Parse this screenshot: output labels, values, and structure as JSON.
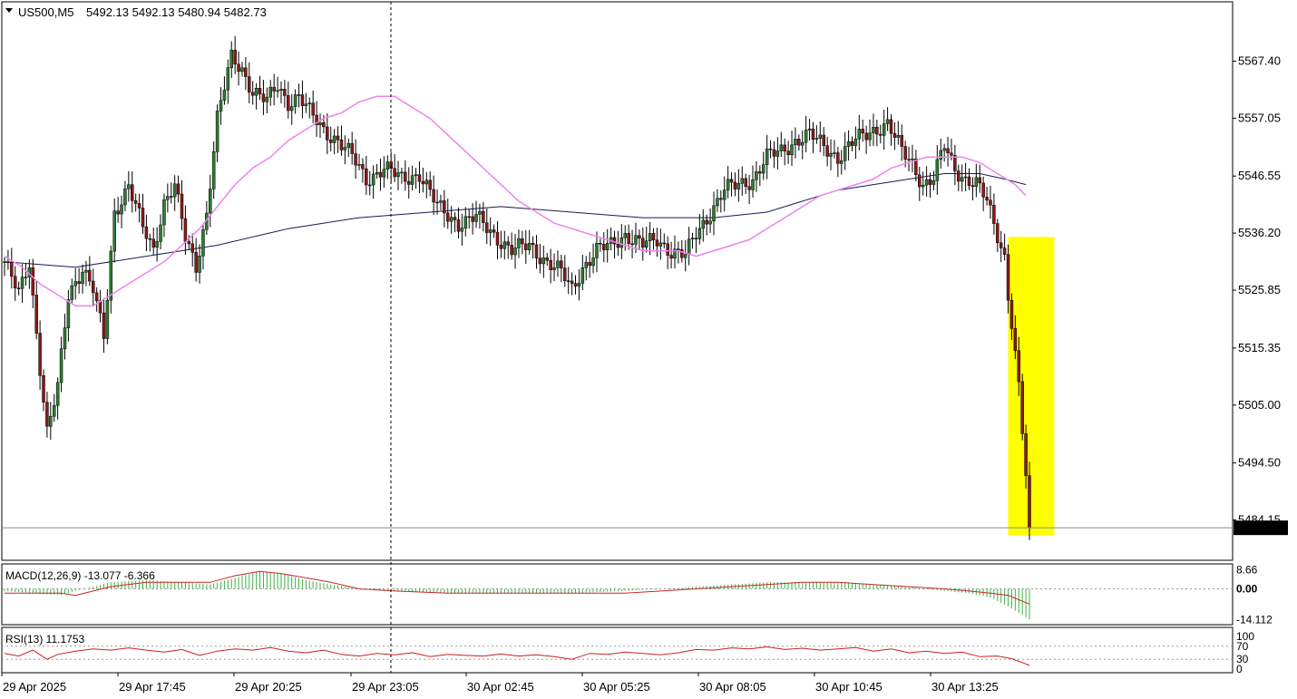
{
  "header": {
    "symbol": "US500,M5",
    "ohlc": "5492.13 5492.13 5480.94 5482.73"
  },
  "colors": {
    "bull": "#2e7d32",
    "bear": "#8b1a1a",
    "ma_fast": "#ee82ee",
    "ma_slow": "#1a1a55",
    "highlight": "#ffff00",
    "macd_hist": "#3cb043",
    "macd_signal": "#c62828",
    "rsi": "#cc1f1f",
    "current_price_bg": "#000000",
    "current_price_text": "#ffffff"
  },
  "chart_data": {
    "type": "candlestick",
    "instrument": "US500",
    "timeframe": "M5",
    "ylim": [
      5477.0,
      5578.0
    ],
    "y_ticks": [
      "5567.40",
      "5557.05",
      "5546.55",
      "5536.20",
      "5525.85",
      "5515.35",
      "5505.00",
      "5494.50",
      "5484.15"
    ],
    "current_price": "5482.73",
    "x_labels": [
      "29 Apr 2025",
      "29 Apr 17:45",
      "29 Apr 20:25",
      "29 Apr 23:05",
      "30 Apr 02:45",
      "30 Apr 05:25",
      "30 Apr 08:05",
      "30 Apr 10:45",
      "30 Apr 13:25"
    ],
    "close_path": [
      [
        0,
        5531
      ],
      [
        4,
        5525
      ],
      [
        7,
        5531
      ],
      [
        10,
        5512
      ],
      [
        12,
        5500
      ],
      [
        15,
        5508
      ],
      [
        18,
        5525
      ],
      [
        22,
        5530
      ],
      [
        25,
        5526
      ],
      [
        28,
        5517
      ],
      [
        31,
        5540
      ],
      [
        35,
        5545
      ],
      [
        39,
        5537
      ],
      [
        42,
        5533
      ],
      [
        45,
        5542
      ],
      [
        48,
        5545
      ],
      [
        51,
        5535
      ],
      [
        54,
        5530
      ],
      [
        57,
        5540
      ],
      [
        60,
        5557
      ],
      [
        64,
        5568
      ],
      [
        67,
        5566
      ],
      [
        70,
        5562
      ],
      [
        74,
        5560
      ],
      [
        77,
        5563
      ],
      [
        80,
        5560
      ],
      [
        83,
        5561
      ],
      [
        86,
        5558
      ],
      [
        90,
        5555
      ],
      [
        94,
        5553
      ],
      [
        98,
        5550
      ],
      [
        102,
        5546
      ],
      [
        107,
        5548
      ],
      [
        112,
        5546
      ],
      [
        117,
        5547
      ],
      [
        122,
        5541
      ],
      [
        128,
        5538
      ],
      [
        133,
        5539
      ],
      [
        138,
        5536
      ],
      [
        143,
        5533
      ],
      [
        148,
        5534
      ],
      [
        153,
        5531
      ],
      [
        157,
        5529
      ],
      [
        160,
        5526
      ],
      [
        163,
        5530
      ],
      [
        167,
        5533
      ],
      [
        171,
        5534
      ],
      [
        175,
        5536
      ],
      [
        180,
        5534
      ],
      [
        184,
        5535
      ],
      [
        188,
        5533
      ],
      [
        192,
        5532
      ],
      [
        195,
        5536
      ],
      [
        199,
        5540
      ],
      [
        203,
        5544
      ],
      [
        207,
        5545
      ],
      [
        211,
        5546
      ],
      [
        215,
        5550
      ],
      [
        219,
        5551
      ],
      [
        223,
        5553
      ],
      [
        227,
        5554
      ],
      [
        231,
        5552
      ],
      [
        235,
        5550
      ],
      [
        240,
        5553
      ],
      [
        245,
        5555
      ],
      [
        249,
        5556
      ],
      [
        253,
        5551
      ],
      [
        256,
        5549
      ],
      [
        259,
        5545
      ],
      [
        262,
        5546
      ],
      [
        265,
        5552
      ],
      [
        268,
        5548
      ],
      [
        271,
        5546
      ],
      [
        274,
        5545
      ],
      [
        277,
        5542
      ],
      [
        280,
        5536
      ],
      [
        282,
        5532
      ],
      [
        283,
        5525
      ],
      [
        284,
        5520
      ],
      [
        285,
        5514
      ],
      [
        286,
        5508
      ],
      [
        287,
        5500
      ],
      [
        288,
        5492
      ],
      [
        289,
        5482.73
      ]
    ],
    "ma_fast": [
      [
        0,
        5532
      ],
      [
        5,
        5530
      ],
      [
        10,
        5527
      ],
      [
        15,
        5525
      ],
      [
        20,
        5523
      ],
      [
        25,
        5523
      ],
      [
        30,
        5525
      ],
      [
        35,
        5527
      ],
      [
        40,
        5529
      ],
      [
        45,
        5531
      ],
      [
        50,
        5534
      ],
      [
        55,
        5537
      ],
      [
        60,
        5541
      ],
      [
        65,
        5545
      ],
      [
        70,
        5548
      ],
      [
        75,
        5550
      ],
      [
        80,
        5553
      ],
      [
        85,
        5555
      ],
      [
        90,
        5557
      ],
      [
        95,
        5558
      ],
      [
        100,
        5560
      ],
      [
        105,
        5561
      ],
      [
        110,
        5561
      ],
      [
        115,
        5559
      ],
      [
        120,
        5557
      ],
      [
        125,
        5554
      ],
      [
        130,
        5551
      ],
      [
        135,
        5548
      ],
      [
        140,
        5545
      ],
      [
        145,
        5542
      ],
      [
        150,
        5540
      ],
      [
        155,
        5538
      ],
      [
        160,
        5537
      ],
      [
        165,
        5536
      ],
      [
        170,
        5535
      ],
      [
        175,
        5534
      ],
      [
        180,
        5533
      ],
      [
        185,
        5533
      ],
      [
        190,
        5533
      ],
      [
        195,
        5532
      ],
      [
        200,
        5533
      ],
      [
        205,
        5534
      ],
      [
        210,
        5535
      ],
      [
        215,
        5537
      ],
      [
        220,
        5539
      ],
      [
        225,
        5541
      ],
      [
        230,
        5543
      ],
      [
        235,
        5544
      ],
      [
        240,
        5545
      ],
      [
        245,
        5546
      ],
      [
        250,
        5548
      ],
      [
        255,
        5549
      ],
      [
        260,
        5550
      ],
      [
        265,
        5550
      ],
      [
        270,
        5550
      ],
      [
        275,
        5549
      ],
      [
        280,
        5547
      ],
      [
        285,
        5545
      ],
      [
        288,
        5543
      ]
    ],
    "ma_slow": [
      [
        0,
        5531
      ],
      [
        20,
        5530
      ],
      [
        40,
        5532
      ],
      [
        60,
        5534
      ],
      [
        80,
        5537
      ],
      [
        100,
        5539
      ],
      [
        120,
        5540
      ],
      [
        140,
        5541
      ],
      [
        160,
        5540
      ],
      [
        180,
        5539
      ],
      [
        200,
        5539
      ],
      [
        215,
        5540
      ],
      [
        225,
        5542
      ],
      [
        235,
        5544
      ],
      [
        245,
        5545
      ],
      [
        255,
        5546
      ],
      [
        265,
        5547
      ],
      [
        275,
        5547
      ],
      [
        282,
        5546
      ],
      [
        288,
        5545
      ]
    ],
    "highlight_box": {
      "x_start": 283,
      "x_end": 296,
      "y_top": 5535.5,
      "y_bottom": 5481.3
    }
  },
  "macd": {
    "label": "MACD(12,26,9) -13.077 -6.366",
    "ylim": [
      -16,
      11
    ],
    "ticks": [
      "8.66",
      "0.00",
      "-14.112"
    ],
    "hist": [
      [
        0,
        -1
      ],
      [
        8,
        -2
      ],
      [
        16,
        -3
      ],
      [
        20,
        -1
      ],
      [
        25,
        1
      ],
      [
        30,
        3
      ],
      [
        40,
        4
      ],
      [
        50,
        3
      ],
      [
        58,
        2
      ],
      [
        65,
        5
      ],
      [
        72,
        8
      ],
      [
        78,
        7
      ],
      [
        85,
        4
      ],
      [
        92,
        2
      ],
      [
        100,
        0
      ],
      [
        110,
        -1
      ],
      [
        125,
        -2
      ],
      [
        140,
        -2
      ],
      [
        160,
        -2
      ],
      [
        175,
        -1
      ],
      [
        185,
        0
      ],
      [
        195,
        1
      ],
      [
        205,
        2
      ],
      [
        215,
        3
      ],
      [
        225,
        3
      ],
      [
        235,
        3
      ],
      [
        245,
        2
      ],
      [
        255,
        1
      ],
      [
        265,
        -1
      ],
      [
        272,
        -2
      ],
      [
        278,
        -4
      ],
      [
        283,
        -8
      ],
      [
        286,
        -11
      ],
      [
        289,
        -14
      ]
    ],
    "signal": [
      [
        0,
        -2
      ],
      [
        8,
        -2
      ],
      [
        16,
        -2
      ],
      [
        20,
        -3
      ],
      [
        25,
        -1
      ],
      [
        30,
        1
      ],
      [
        40,
        3
      ],
      [
        50,
        3
      ],
      [
        58,
        3
      ],
      [
        65,
        6
      ],
      [
        72,
        8
      ],
      [
        78,
        7
      ],
      [
        85,
        5
      ],
      [
        92,
        3
      ],
      [
        100,
        0
      ],
      [
        110,
        -1
      ],
      [
        125,
        -2
      ],
      [
        140,
        -2
      ],
      [
        160,
        -2
      ],
      [
        175,
        -2
      ],
      [
        185,
        -1
      ],
      [
        195,
        0
      ],
      [
        205,
        1
      ],
      [
        215,
        2
      ],
      [
        225,
        3
      ],
      [
        235,
        3
      ],
      [
        245,
        2
      ],
      [
        255,
        1
      ],
      [
        265,
        0
      ],
      [
        272,
        -1
      ],
      [
        278,
        -2
      ],
      [
        283,
        -3
      ],
      [
        286,
        -5
      ],
      [
        289,
        -7
      ]
    ]
  },
  "rsi": {
    "label": "RSI(13) 11.1753",
    "ticks": [
      "100",
      "70",
      "30",
      "0"
    ],
    "series": [
      [
        0,
        48
      ],
      [
        4,
        40
      ],
      [
        8,
        58
      ],
      [
        12,
        30
      ],
      [
        15,
        45
      ],
      [
        20,
        55
      ],
      [
        25,
        62
      ],
      [
        30,
        58
      ],
      [
        35,
        65
      ],
      [
        40,
        58
      ],
      [
        45,
        52
      ],
      [
        50,
        60
      ],
      [
        55,
        42
      ],
      [
        60,
        55
      ],
      [
        65,
        62
      ],
      [
        70,
        58
      ],
      [
        75,
        66
      ],
      [
        80,
        55
      ],
      [
        85,
        50
      ],
      [
        90,
        58
      ],
      [
        95,
        45
      ],
      [
        100,
        40
      ],
      [
        105,
        48
      ],
      [
        110,
        44
      ],
      [
        115,
        50
      ],
      [
        120,
        38
      ],
      [
        125,
        45
      ],
      [
        130,
        42
      ],
      [
        135,
        40
      ],
      [
        140,
        46
      ],
      [
        145,
        40
      ],
      [
        150,
        44
      ],
      [
        155,
        38
      ],
      [
        160,
        30
      ],
      [
        165,
        48
      ],
      [
        170,
        45
      ],
      [
        175,
        52
      ],
      [
        180,
        48
      ],
      [
        185,
        44
      ],
      [
        190,
        50
      ],
      [
        195,
        60
      ],
      [
        200,
        58
      ],
      [
        205,
        65
      ],
      [
        210,
        62
      ],
      [
        215,
        68
      ],
      [
        220,
        60
      ],
      [
        225,
        64
      ],
      [
        230,
        58
      ],
      [
        235,
        62
      ],
      [
        240,
        66
      ],
      [
        245,
        55
      ],
      [
        250,
        62
      ],
      [
        255,
        50
      ],
      [
        260,
        55
      ],
      [
        265,
        48
      ],
      [
        270,
        52
      ],
      [
        275,
        38
      ],
      [
        280,
        40
      ],
      [
        284,
        32
      ],
      [
        287,
        20
      ],
      [
        289,
        11.18
      ]
    ]
  }
}
